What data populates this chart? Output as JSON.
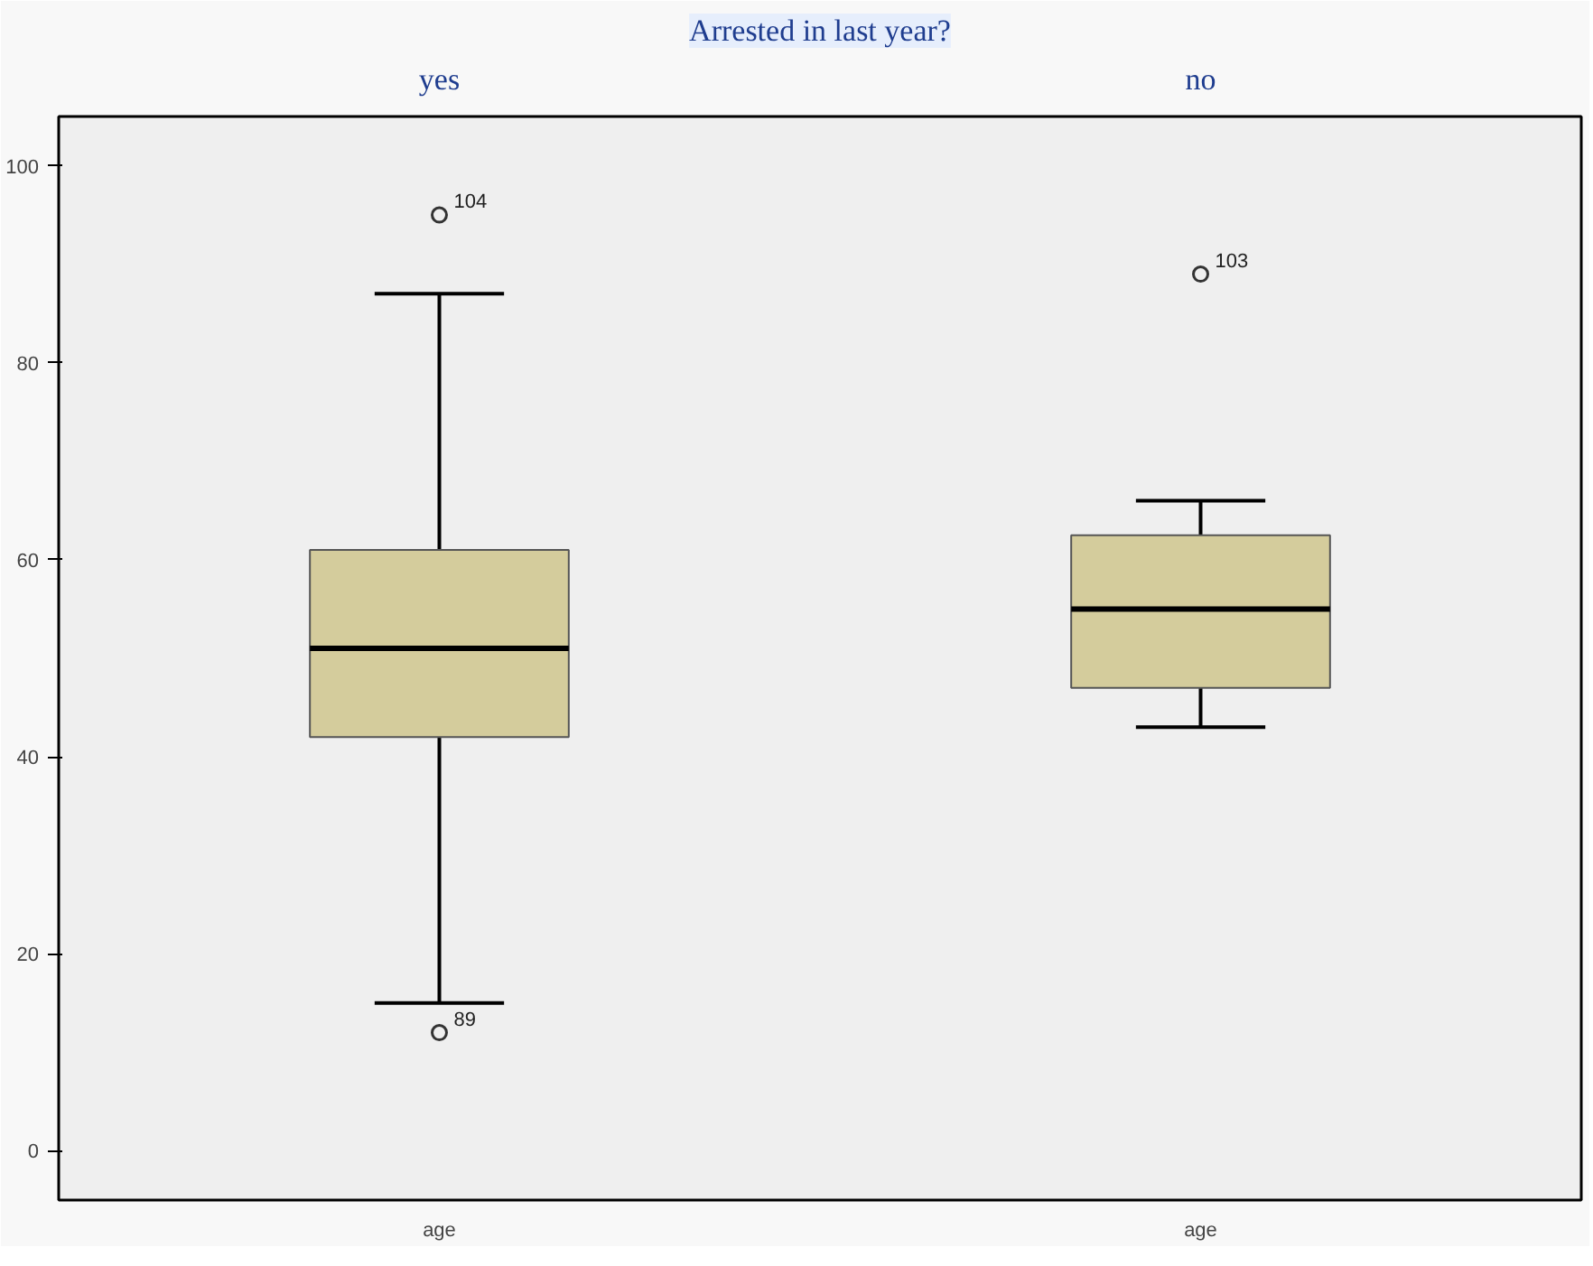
{
  "chart_data": {
    "type": "box",
    "title": "Arrested in last year?",
    "categories": [
      "age",
      "age"
    ],
    "color": "#d4cc9c",
    "annotations": [
      "yes",
      "no",
      "104",
      "89",
      "103"
    ],
    "boxes": [
      {
        "low": 15,
        "q1": 42,
        "median": 51,
        "q3": 61,
        "high": 87,
        "outliers": [
          95,
          12
        ]
      },
      {
        "low": 43,
        "q1": 47,
        "median": 55,
        "q3": 62.5,
        "high": 66,
        "outliers": [
          89
        ]
      }
    ],
    "ylim": [
      -5,
      105
    ],
    "yticks": [
      0,
      20,
      40,
      60,
      80,
      100
    ],
    "grid": false
  }
}
